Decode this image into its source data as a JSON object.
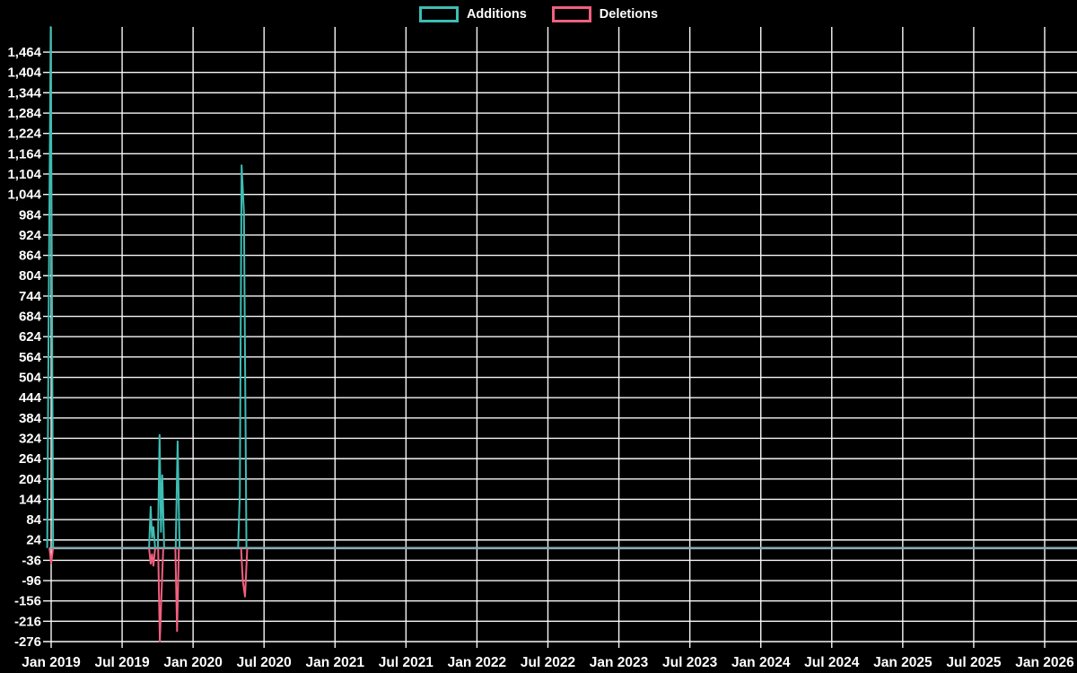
{
  "chart_data": {
    "type": "line",
    "title": "",
    "legend_position": "top-center",
    "grid": true,
    "colors": {
      "background": "#000000",
      "grid": "#f7f7f7",
      "text": "#ffffff",
      "additions": "#3dbdb4",
      "deletions": "#f25f7f",
      "zero_overlap_line": "#8cabb5"
    },
    "x_axis": {
      "tick_labels": [
        "Jan 2019",
        "Jul 2019",
        "Jan 2020",
        "Jul 2020",
        "Jan 2021",
        "Jul 2021",
        "Jan 2022",
        "Jul 2022",
        "Jan 2023",
        "Jul 2023",
        "Jan 2024",
        "Jul 2024",
        "Jan 2025",
        "Jul 2025",
        "Jan 2026"
      ],
      "start_year": 2019,
      "end_year_visible": 2026.25
    },
    "y_axis": {
      "tick_labels": [
        "1,464",
        "1,404",
        "1,344",
        "1,284",
        "1,224",
        "1,164",
        "1,104",
        "1,044",
        "984",
        "924",
        "864",
        "804",
        "744",
        "684",
        "624",
        "564",
        "504",
        "444",
        "384",
        "324",
        "264",
        "204",
        "144",
        "84",
        "24",
        "-36",
        "-96",
        "-156",
        "-216",
        "-276"
      ],
      "tick_max": 1464,
      "tick_min": -276,
      "step": 60,
      "plot_top_value": 1538
    },
    "zero_line_value": 0,
    "series": [
      {
        "name": "Additions",
        "color": "#3dbdb4",
        "baseline": 0,
        "segments": [
          [
            [
              2018.972,
              0
            ],
            [
              2018.984,
              790
            ],
            [
              2018.997,
              1538
            ],
            [
              2019.014,
              0
            ]
          ],
          [
            [
              2019.69,
              0
            ],
            [
              2019.701,
              122
            ],
            [
              2019.711,
              30
            ],
            [
              2019.72,
              62
            ],
            [
              2019.733,
              0
            ]
          ],
          [
            [
              2019.752,
              0
            ],
            [
              2019.764,
              334
            ],
            [
              2019.774,
              48
            ],
            [
              2019.783,
              215
            ],
            [
              2019.796,
              0
            ]
          ],
          [
            [
              2019.878,
              0
            ],
            [
              2019.891,
              315
            ],
            [
              2019.905,
              0
            ]
          ],
          [
            [
              2020.317,
              0
            ],
            [
              2020.329,
              160
            ],
            [
              2020.342,
              1130
            ],
            [
              2020.358,
              990
            ],
            [
              2020.376,
              0
            ]
          ]
        ]
      },
      {
        "name": "Deletions",
        "color": "#f25f7f",
        "baseline": 0,
        "segments": [
          [
            [
              2018.988,
              0
            ],
            [
              2019.0,
              -45
            ],
            [
              2019.013,
              0
            ]
          ],
          [
            [
              2019.69,
              0
            ],
            [
              2019.701,
              -46
            ],
            [
              2019.711,
              -18
            ],
            [
              2019.72,
              -52
            ],
            [
              2019.733,
              0
            ]
          ],
          [
            [
              2019.754,
              0
            ],
            [
              2019.766,
              -276
            ],
            [
              2019.778,
              -130
            ],
            [
              2019.79,
              0
            ]
          ],
          [
            [
              2019.875,
              0
            ],
            [
              2019.887,
              -245
            ],
            [
              2019.9,
              0
            ]
          ],
          [
            [
              2020.338,
              0
            ],
            [
              2020.35,
              -95
            ],
            [
              2020.366,
              -143
            ],
            [
              2020.382,
              0
            ]
          ]
        ]
      }
    ]
  }
}
